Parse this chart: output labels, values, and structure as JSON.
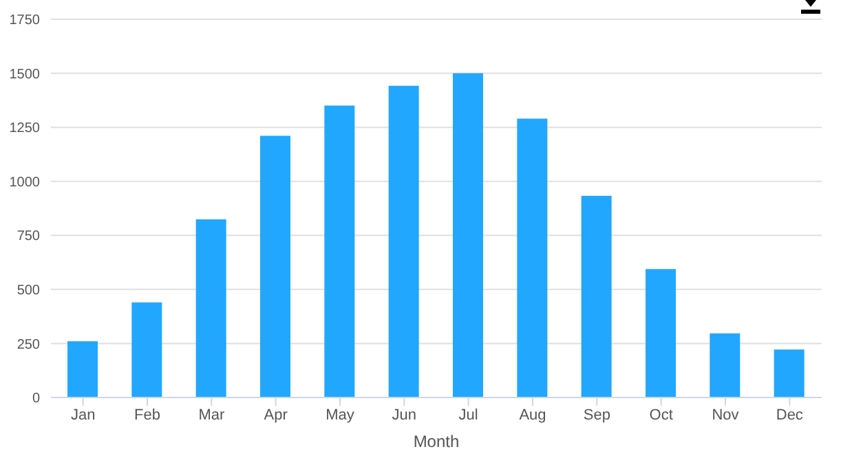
{
  "chart_data": {
    "type": "bar",
    "xlabel": "Month",
    "categories": [
      "Jan",
      "Feb",
      "Mar",
      "Apr",
      "May",
      "Jun",
      "Jul",
      "Aug",
      "Sep",
      "Oct",
      "Nov",
      "Dec"
    ],
    "values": [
      260,
      440,
      824,
      1211,
      1351,
      1442,
      1500,
      1290,
      933,
      594,
      297,
      222
    ],
    "color": "#22a7ff",
    "ylim": [
      0,
      1750
    ],
    "yticks": [
      0,
      250,
      500,
      750,
      1000,
      1250,
      1500,
      1750
    ],
    "grid": "y",
    "legend": false
  }
}
